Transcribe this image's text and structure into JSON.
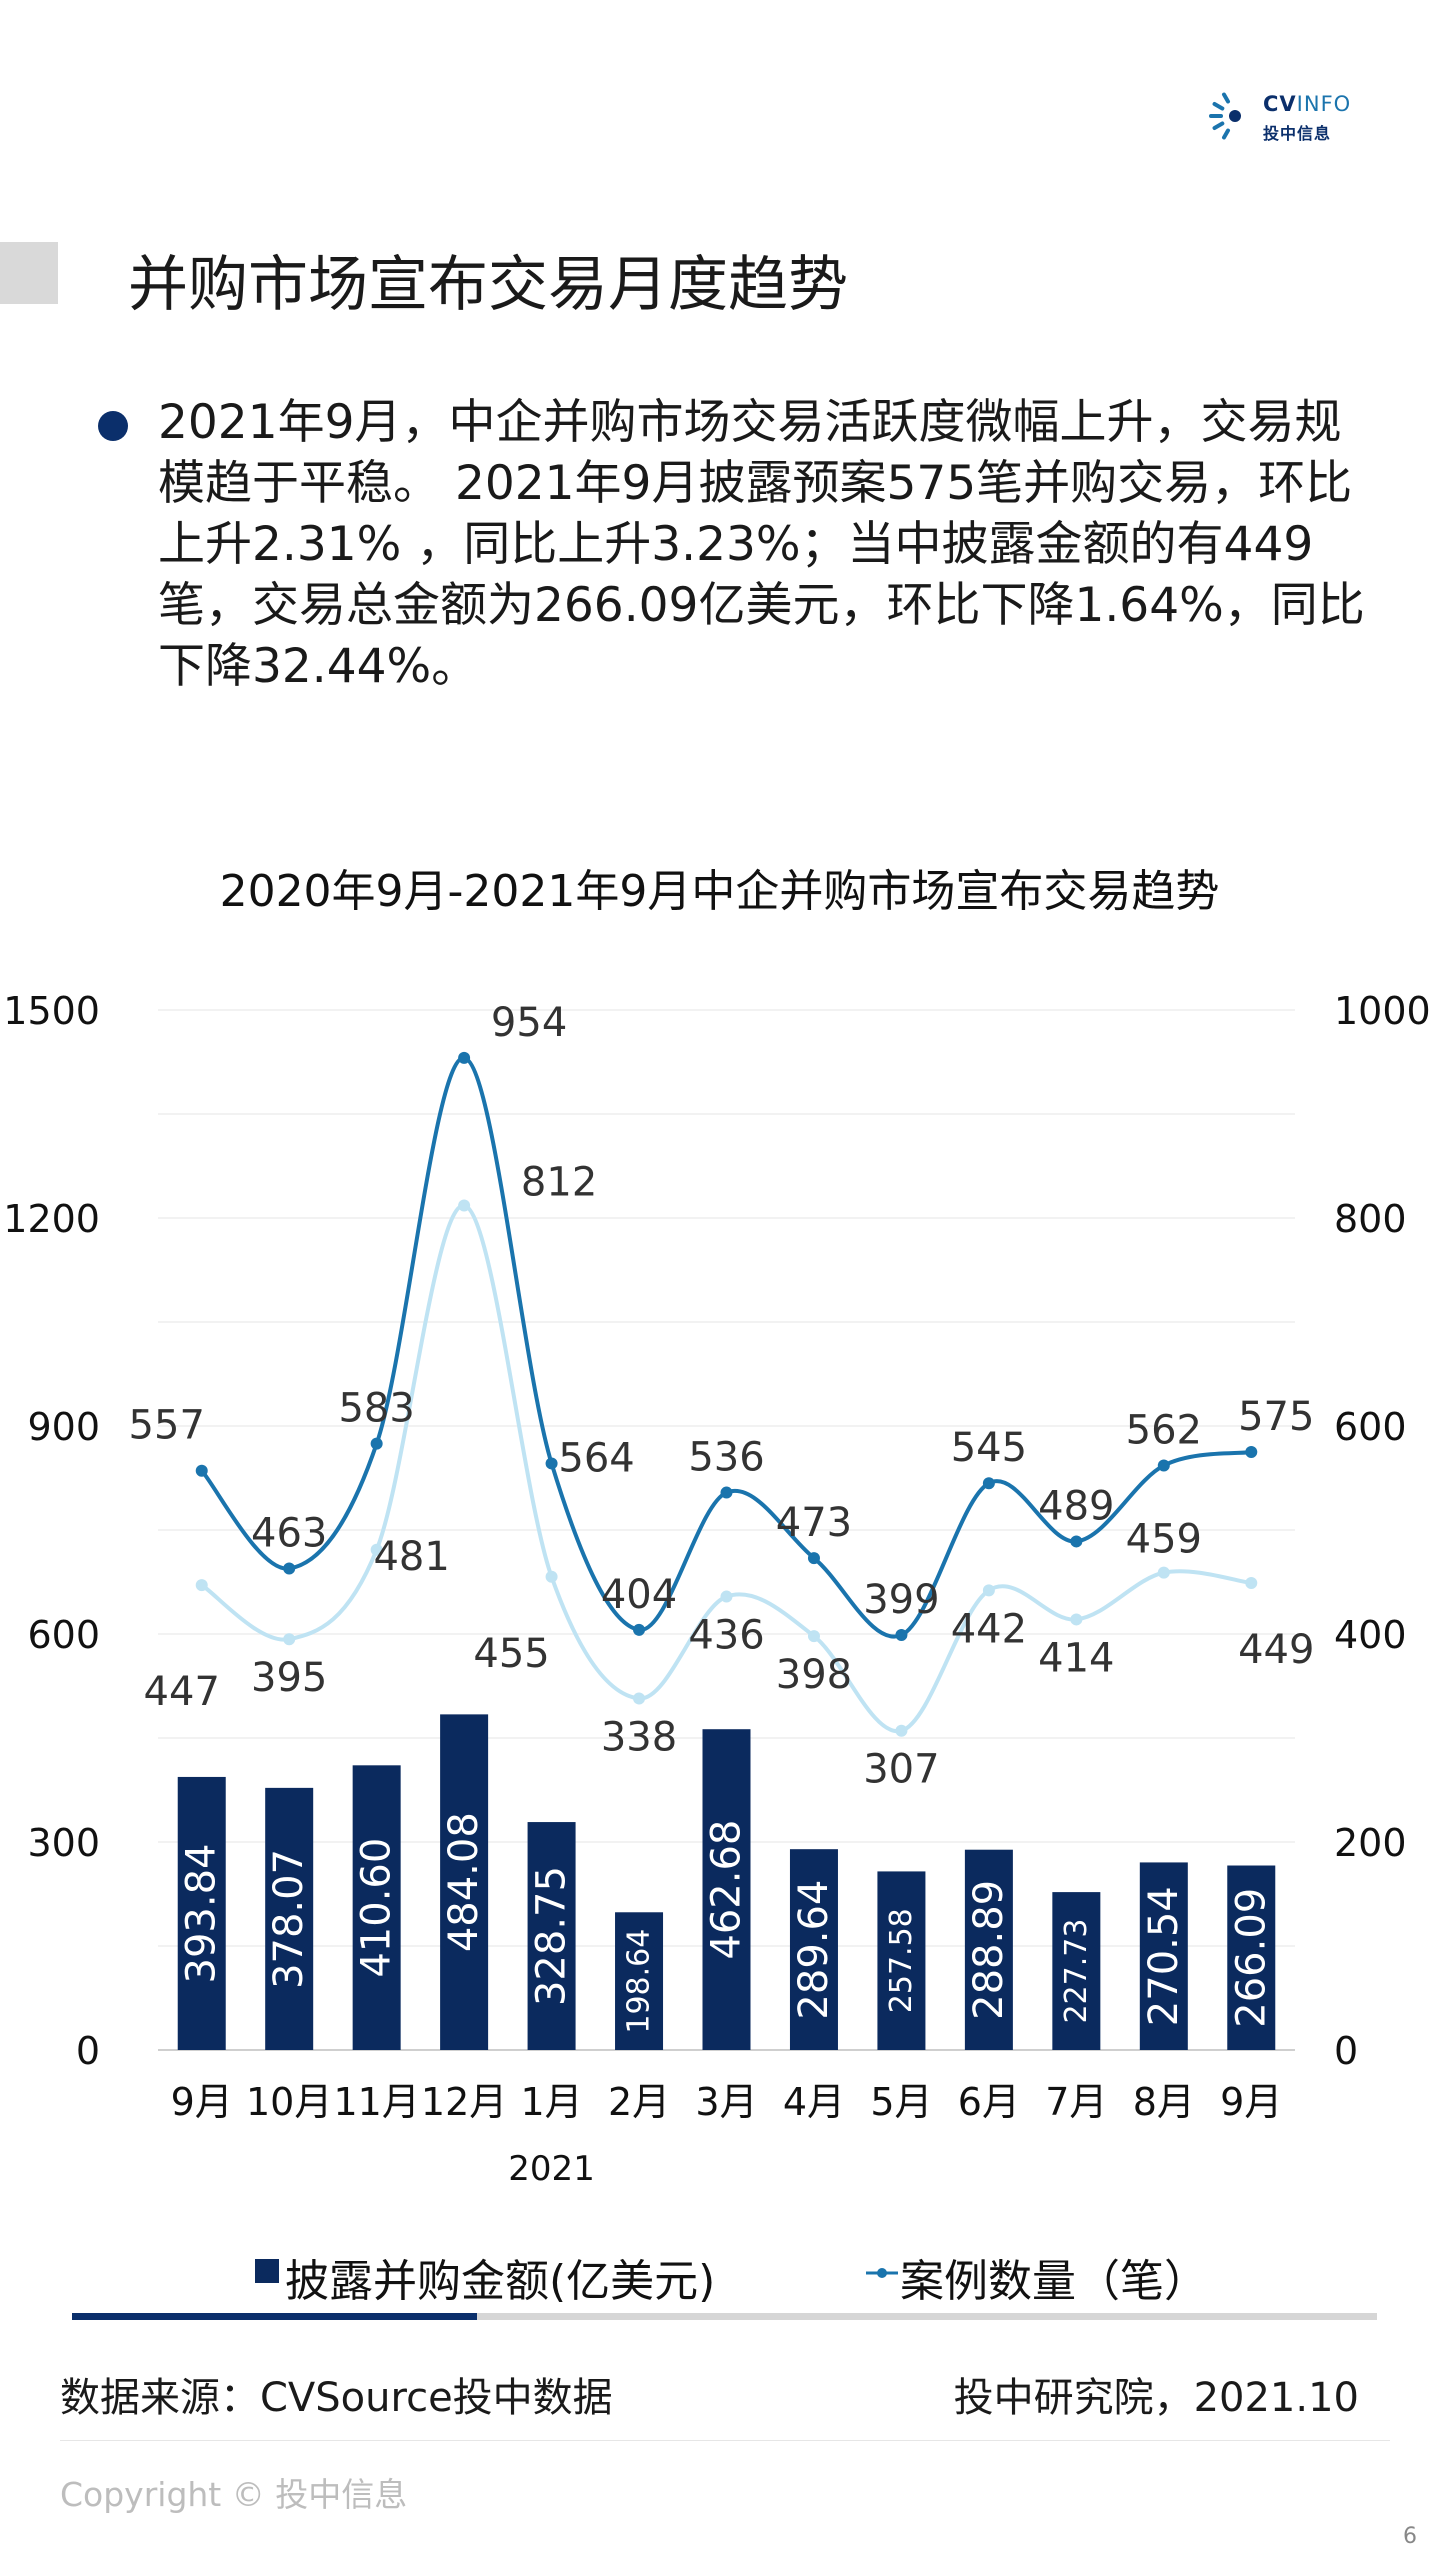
{
  "brand": {
    "logo_top_bold": "CV",
    "logo_top_thin": "INFO",
    "logo_bottom": "投中信息",
    "icon": "cvinfo-logo-icon"
  },
  "header": {
    "title": "并购市场宣布交易月度趋势"
  },
  "summary": "2021年9月，中企并购市场交易活跃度微幅上升，交易规模趋于平稳。 2021年9月披露预案575笔并购交易，环比上升2.31% ，同比上升3.23%；当中披露金额的有449笔，交易总金额为266.09亿美元，环比下降1.64%，同比下降32.44%。",
  "chart_data": {
    "type": "bar",
    "title": "2020年9月-2021年9月中企并购市场宣布交易趋势",
    "categories": [
      "9月",
      "10月",
      "11月",
      "12月",
      "1月",
      "2月",
      "3月",
      "4月",
      "5月",
      "6月",
      "7月",
      "8月",
      "9月"
    ],
    "year_label": "2021",
    "y_left": {
      "ticks": [
        "0",
        "300",
        "600",
        "900",
        "1200",
        "1500"
      ],
      "range": [
        0,
        1500
      ]
    },
    "y_right": {
      "ticks": [
        "0",
        "200",
        "400",
        "600",
        "800",
        "1000"
      ],
      "range": [
        0,
        1000
      ]
    },
    "grid": true,
    "legend_position": "bottom",
    "series": [
      {
        "name": "披露并购金额(亿美元)",
        "kind": "bar",
        "axis": "left",
        "color": "#0b2a5e",
        "values": [
          393.84,
          378.07,
          410.6,
          484.08,
          328.75,
          198.64,
          462.68,
          289.64,
          257.58,
          288.89,
          227.73,
          270.54,
          266.09
        ],
        "labels": [
          "393.84",
          "378.07",
          "410.60",
          "484.08",
          "328.75",
          "198.64",
          "462.68",
          "289.64",
          "257.58",
          "288.89",
          "227.73",
          "270.54",
          "266.09"
        ]
      },
      {
        "name": "案例数量（笔）",
        "kind": "line",
        "axis": "right",
        "color": "#1a74ad",
        "values": [
          557,
          463,
          583,
          954,
          564,
          404,
          536,
          473,
          399,
          545,
          489,
          562,
          575
        ],
        "labels": [
          "557",
          "463",
          "583",
          "954",
          "564",
          "404",
          "536",
          "473",
          "399",
          "545",
          "489",
          "562",
          "575"
        ]
      },
      {
        "kind": "line",
        "axis": "right",
        "color": "#bfe3f3",
        "values": [
          447,
          395,
          481,
          812,
          455,
          338,
          436,
          398,
          307,
          442,
          414,
          459,
          449
        ],
        "labels": [
          "447",
          "395",
          "481",
          "812",
          "455",
          "338",
          "436",
          "398",
          "307",
          "442",
          "414",
          "459",
          "449"
        ]
      }
    ]
  },
  "progress": {
    "value_percent": 31
  },
  "footer": {
    "source": "数据来源：CVSource投中数据",
    "credit": "投中研究院，2021.10",
    "copyright": "Copyright © 投中信息",
    "page": "6"
  }
}
